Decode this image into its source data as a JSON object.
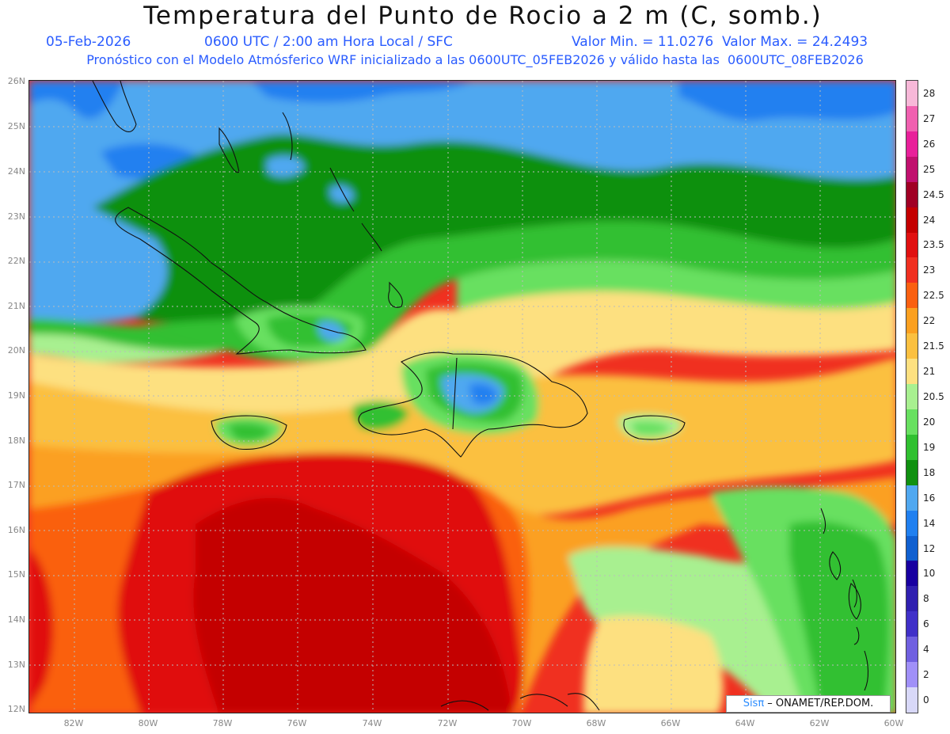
{
  "header": {
    "title": "Temperatura del Punto de Rocio a 2 m (C, somb.)",
    "date": "05-Feb-2026",
    "time": "0600 UTC / 2:00 am Hora Local / SFC",
    "minmax": "Valor Min. = 11.0276  Valor Max. = 24.2493",
    "model_line": "Pronóstico con el Modelo Atmósferico WRF inicializado a las 0600UTC_05FEB2026 y válido hasta las  0600UTC_08FEB2026"
  },
  "credit": {
    "sis": "Sisπ",
    "rest": " – ONAMET/REP.DOM."
  },
  "lat_labels": [
    "26N",
    "25N",
    "24N",
    "23N",
    "22N",
    "21N",
    "20N",
    "19N",
    "18N",
    "17N",
    "16N",
    "15N",
    "14N",
    "13N",
    "12N"
  ],
  "lon_labels": [
    "82W",
    "80W",
    "78W",
    "76W",
    "74W",
    "72W",
    "70W",
    "68W",
    "66W",
    "64W",
    "62W",
    "60W"
  ],
  "colorbar": {
    "labels": [
      "28",
      "27",
      "26",
      "25",
      "24.5",
      "24",
      "23.5",
      "23",
      "22.5",
      "22",
      "21.5",
      "21",
      "20.5",
      "20",
      "19",
      "18",
      "16",
      "14",
      "12",
      "10",
      "8",
      "6",
      "4",
      "2",
      "0"
    ],
    "colors": [
      "#f7b8d8",
      "#f060b0",
      "#e8209a",
      "#c0106e",
      "#a00024",
      "#c40000",
      "#e01010",
      "#f03020",
      "#fa6010",
      "#fba020",
      "#fbc040",
      "#fde080",
      "#a8f090",
      "#68e060",
      "#30c030",
      "#109010",
      "#50a8f0",
      "#2080f0",
      "#1060d0",
      "#1800a0",
      "#3020b0",
      "#4030c8",
      "#7060e0",
      "#a090f8",
      "#d8d8f8"
    ]
  }
}
